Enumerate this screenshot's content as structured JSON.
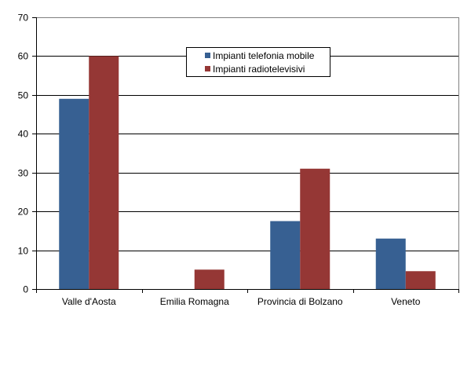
{
  "chart_data": {
    "type": "bar",
    "title": "",
    "xlabel": "",
    "ylabel": "",
    "ylim": [
      0,
      70
    ],
    "yticks": [
      0,
      10,
      20,
      30,
      40,
      50,
      60,
      70
    ],
    "grid": true,
    "legend_position": "top-center-inside",
    "categories": [
      "Valle d'Aosta",
      "Emilia Romagna",
      "Provincia di Bolzano",
      "Veneto"
    ],
    "series": [
      {
        "name": "Impianti telefonia mobile",
        "color": "#376092",
        "values": [
          49,
          0,
          17.5,
          13
        ]
      },
      {
        "name": "Impianti radiotelevisivi",
        "color": "#953735",
        "values": [
          60,
          5,
          31,
          4.6
        ]
      }
    ]
  },
  "legend": {
    "items": [
      {
        "label": "Impianti telefonia mobile",
        "color": "#376092"
      },
      {
        "label": "Impianti radiotelevisivi",
        "color": "#953735"
      }
    ]
  }
}
